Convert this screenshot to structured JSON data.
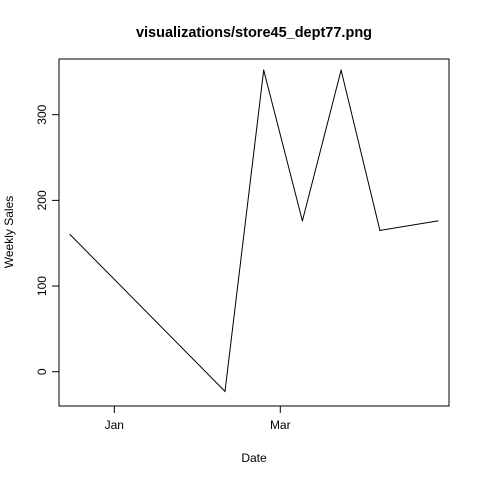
{
  "chart_data": {
    "type": "line",
    "title": "visualizations/store45_dept77.png",
    "xlabel": "Date",
    "ylabel": "Weekly Sales",
    "x": [
      "2011-12-16",
      "2012-02-10",
      "2012-02-24",
      "2012-03-09",
      "2012-03-23",
      "2012-04-06",
      "2012-04-27"
    ],
    "x_ticks": [
      {
        "label": "Jan",
        "date": "2012-01-01"
      },
      {
        "label": "Mar",
        "date": "2012-03-01"
      }
    ],
    "xlim": [
      "2011-12-12",
      "2012-05-01"
    ],
    "series": [
      {
        "values": [
          160,
          -23,
          352,
          176,
          352,
          165,
          176
        ],
        "color": "#000000"
      }
    ],
    "y_ticks": [
      0,
      100,
      200,
      300
    ],
    "ylim": [
      -40,
      365
    ],
    "grid": false,
    "legend": "none"
  }
}
